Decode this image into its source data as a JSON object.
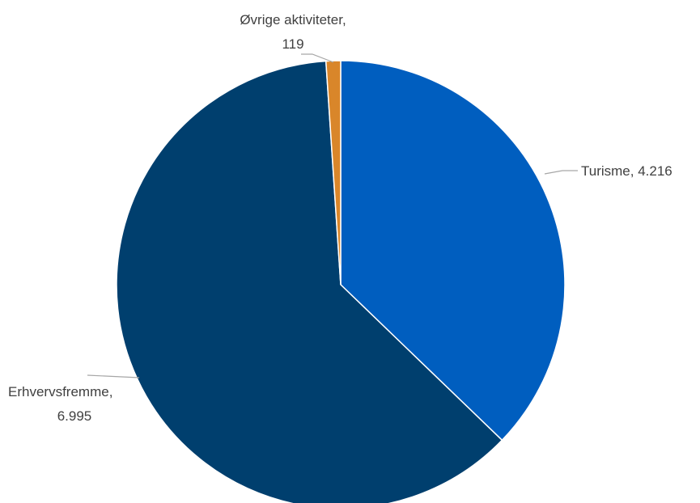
{
  "chart_data": {
    "type": "pie",
    "title": "",
    "categories": [
      "Turisme",
      "Erhvervsfremme",
      "Øvrige aktiviteter"
    ],
    "values": [
      4216,
      6995,
      119
    ],
    "value_labels": [
      "4.216",
      "6.995",
      "119"
    ],
    "colors": [
      "#005ebf",
      "#003f6e",
      "#d9862a"
    ],
    "start": "12 o'clock",
    "direction": "clockwise",
    "legend": "none",
    "data_labels": "outside with leader lines"
  }
}
